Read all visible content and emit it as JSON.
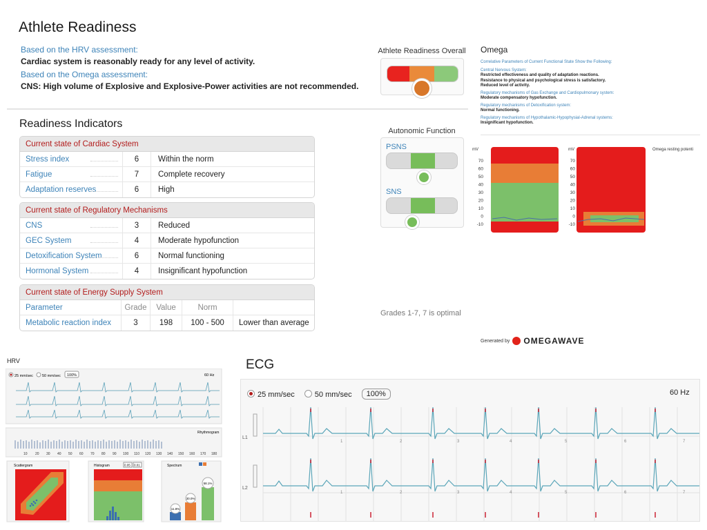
{
  "header": {
    "title": "Athlete Readiness",
    "hrv_heading": "Based on the HRV assessment:",
    "hrv_message": "Cardiac system is reasonably ready for any level of activity.",
    "omega_heading": "Based on the Omega assessment:",
    "omega_message": "CNS: High volume of Explosive and Explosive-Power activities are not recommended."
  },
  "readiness_overall": {
    "label": "Athlete Readiness Overall",
    "segment_colors": [
      "#e8231f",
      "#ea8a3a",
      "#8cc97a",
      "#d8d8d8"
    ],
    "indicator_color": "#d8772a"
  },
  "readiness_indicators": {
    "title": "Readiness Indicators",
    "cardiac": {
      "heading": "Current state of Cardiac System",
      "rows": [
        {
          "name": "Stress index",
          "grade": "6",
          "desc": "Within the norm"
        },
        {
          "name": "Fatigue",
          "grade": "7",
          "desc": "Complete recovery"
        },
        {
          "name": "Adaptation reserves",
          "grade": "6",
          "desc": "High"
        }
      ]
    },
    "regulatory": {
      "heading": "Current state of Regulatory Mechanisms",
      "rows": [
        {
          "name": "CNS",
          "grade": "3",
          "desc": "Reduced"
        },
        {
          "name": "GEC System",
          "grade": "4",
          "desc": "Moderate hypofunction"
        },
        {
          "name": "Detoxification System",
          "grade": "6",
          "desc": "Normal functioning"
        },
        {
          "name": "Hormonal System",
          "grade": "4",
          "desc": "Insignificant hypofunction"
        }
      ]
    },
    "energy": {
      "heading": "Current state of Energy Supply System",
      "columns": [
        "Parameter",
        "Grade",
        "Value",
        "Norm",
        ""
      ],
      "row": {
        "name": "Metabolic reaction index",
        "grade": "3",
        "value": "198",
        "norm": "100 - 500",
        "comment": "Lower than average"
      }
    }
  },
  "autonomic": {
    "label": "Autonomic Function",
    "psns": "PSNS",
    "sns": "SNS",
    "level_color": "#77bd5a"
  },
  "grades_note": "Grades 1-7, 7 is optimal",
  "omega": {
    "title": "Omega",
    "intro": "Correlative Parameters of Current Functional State Show the Following:",
    "items": [
      {
        "system": "Central Nervous System:",
        "findings": [
          "Restricted effectiveness and quality of adaptation reactions.",
          "Resistance to physical and psychological stress is satisfactory.",
          "Reduced level of activity."
        ]
      },
      {
        "system": "Regulatory mechanisms of Gas Exchange and Cardiopulmonary system:",
        "findings": [
          "Moderate compensatory hypofunction."
        ]
      },
      {
        "system": "Regulatory mechanisms of Detoxification system:",
        "findings": [
          "Normal functioning."
        ]
      },
      {
        "system": "Regulatory mechanisms of Hypothalamic-Hypophysial-Adrenal systems:",
        "findings": [
          "Insignificant hypofunction."
        ]
      }
    ],
    "chart_unit": "mV",
    "chart_ticks": [
      "70",
      "60",
      "50",
      "40",
      "30",
      "20",
      "10",
      "0",
      "-10"
    ],
    "chart_caption": "Omega resting potenti",
    "generated_by": "Generated by",
    "brand": "OMEGAWAVE"
  },
  "hrv": {
    "title": "HRV",
    "speed_25": "25 mm/sec",
    "speed_50": "50 mm/sec",
    "zoom": "100%",
    "hz": "60 Hz",
    "rhythmogram": "Rhythmogram",
    "rhythm_ticks": [
      "10",
      "20",
      "30",
      "40",
      "50",
      "60",
      "70",
      "80",
      "90",
      "100",
      "110",
      "120",
      "130",
      "140",
      "150",
      "160",
      "170",
      "180"
    ],
    "scattergram": "Scattergram",
    "histogram": "Histogram",
    "histo_btns": [
      "0.05",
      "0.01"
    ],
    "spectrum": "Spectrum",
    "spectrum_vals": [
      "11.8%",
      "30.0%",
      "58.1%"
    ]
  },
  "ecg": {
    "title": "ECG",
    "speed_25": "25 mm/sec",
    "speed_50": "50 mm/sec",
    "zoom": "100%",
    "hz": "60 Hz",
    "leads": [
      "L1",
      "L2"
    ],
    "beat_numbers": [
      "1",
      "2",
      "3",
      "4",
      "5",
      "6",
      "7"
    ]
  }
}
